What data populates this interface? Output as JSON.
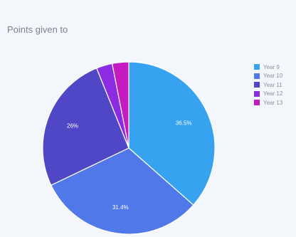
{
  "chart_data": {
    "type": "pie",
    "title": "Points given to",
    "categories": [
      "Year 9",
      "Year 10",
      "Year 11",
      "Year 12",
      "Year 13"
    ],
    "values": [
      36.5,
      31.4,
      26,
      3,
      3.1
    ],
    "data_labels": [
      "36.5%",
      "31.4%",
      "26%",
      "",
      ""
    ],
    "colors": [
      "#36a2f0",
      "#5178e8",
      "#5047c6",
      "#8b2be2",
      "#c41ac0"
    ],
    "legend_position": "right"
  }
}
